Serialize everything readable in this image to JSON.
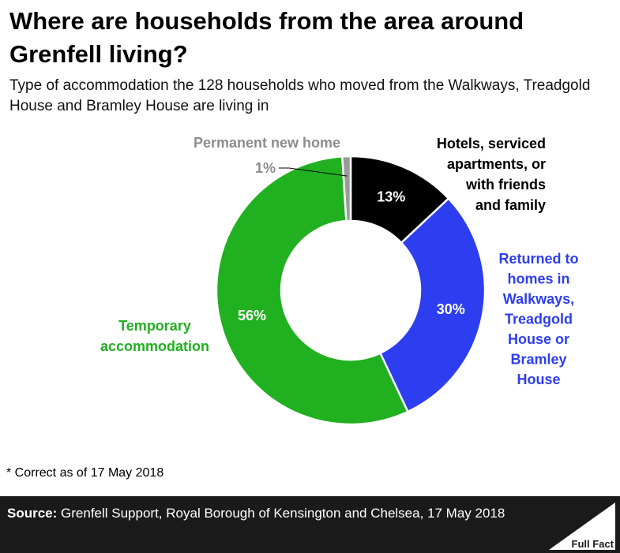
{
  "header": {
    "title": "Where are households from the area around Grenfell living?",
    "subtitle": "Type of accommodation the 128 households who moved from the Walkways, Treadgold House and Bramley House are living in"
  },
  "chart_data": {
    "type": "pie",
    "variant": "donut",
    "title": "Where are households from the area around Grenfell living?",
    "subtitle": "Type of accommodation the 128 households who moved from the Walkways, Treadgold House and Bramley House are living in",
    "unit": "%",
    "slices": [
      {
        "name": "Hotels, serviced apartments, or with friends and family",
        "label_lines": [
          "Hotels, serviced",
          "apartments, or",
          "with friends",
          "and family"
        ],
        "value": 13,
        "value_label": "13%",
        "color": "#000000",
        "label_color": "#000000"
      },
      {
        "name": "Returned to homes in Walkways, Treadgold House or Bramley House",
        "label_lines": [
          "Returned to",
          "homes in",
          "Walkways,",
          "Treadgold",
          "House or",
          "Bramley",
          "House"
        ],
        "value": 30,
        "value_label": "30%",
        "color": "#2d3ef0",
        "label_color": "#2d3ef0"
      },
      {
        "name": "Temporary accommodation",
        "label_lines": [
          "Temporary",
          "accommodation"
        ],
        "value": 56,
        "value_label": "56%",
        "color": "#21b020",
        "label_color": "#21b020"
      },
      {
        "name": "Permanent new home",
        "label_lines": [
          "Permanent new home"
        ],
        "value": 1,
        "value_label": "1%",
        "color": "#9a9a9a",
        "label_color": "#8c8c8c"
      }
    ]
  },
  "note": "* Correct as of 17 May 2018",
  "footer": {
    "source_label": "Source:",
    "source_text": " Grenfell Support, Royal Borough of Kensington and Chelsea, 17 May 2018",
    "brand": "Full Fact"
  }
}
